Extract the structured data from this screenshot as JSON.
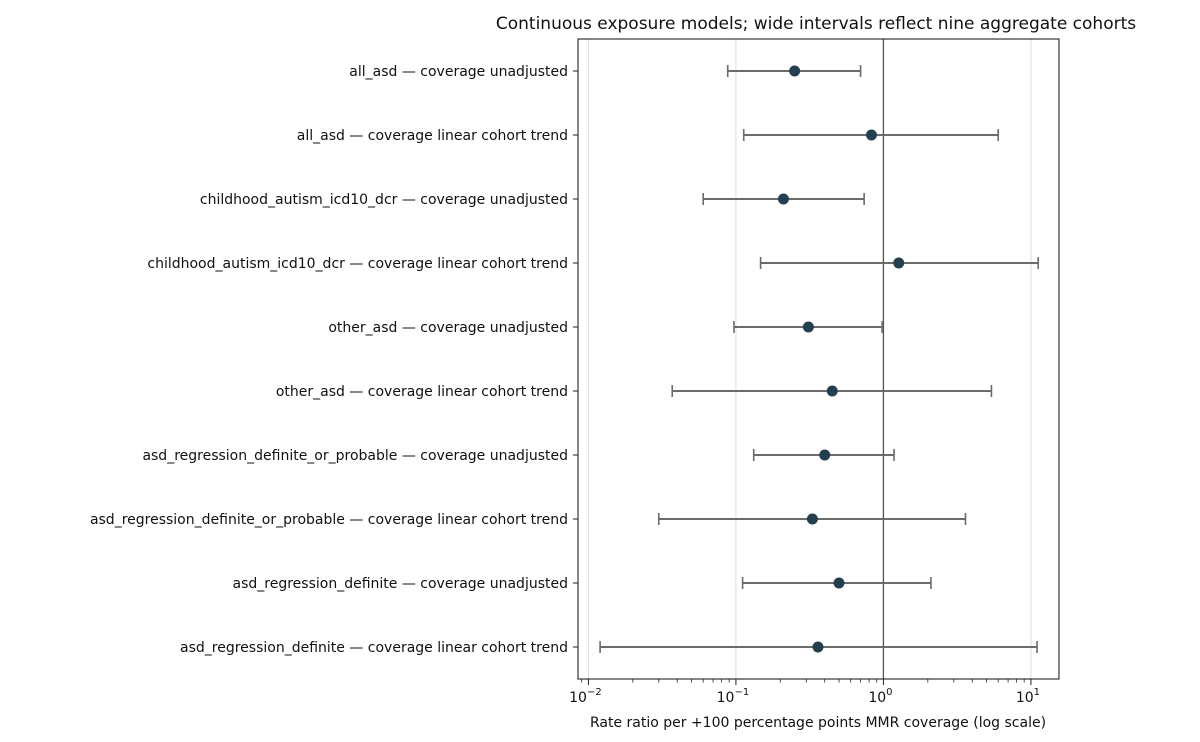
{
  "chart_data": {
    "type": "forest",
    "title": "Continuous exposure models; wide intervals reflect nine aggregate cohorts",
    "xlabel": "Rate ratio per +100 percentage points MMR coverage (log scale)",
    "x_scale": "log10",
    "xlim": [
      0.0085,
      15.5
    ],
    "x_ticks": [
      {
        "base": "10",
        "exp": "−2",
        "value": 0.01
      },
      {
        "base": "10",
        "exp": "−1",
        "value": 0.1
      },
      {
        "base": "10",
        "exp": "0",
        "value": 1
      },
      {
        "base": "10",
        "exp": "1",
        "value": 10
      }
    ],
    "reference_line": 1,
    "grid": "vertical at major ticks",
    "marker_color": "#243f4f",
    "errorbar_color": "#6b6b6b",
    "rows": [
      {
        "label": "all_asd — coverage unadjusted",
        "estimate": 0.25,
        "lower": 0.088,
        "upper": 0.7
      },
      {
        "label": "all_asd — coverage linear cohort trend",
        "estimate": 0.83,
        "lower": 0.113,
        "upper": 6.0
      },
      {
        "label": "childhood_autism_icd10_dcr — coverage unadjusted",
        "estimate": 0.21,
        "lower": 0.06,
        "upper": 0.74
      },
      {
        "label": "childhood_autism_icd10_dcr — coverage linear cohort trend",
        "estimate": 1.27,
        "lower": 0.147,
        "upper": 11.2
      },
      {
        "label": "other_asd — coverage unadjusted",
        "estimate": 0.31,
        "lower": 0.097,
        "upper": 0.98
      },
      {
        "label": "other_asd — coverage linear cohort trend",
        "estimate": 0.45,
        "lower": 0.037,
        "upper": 5.4
      },
      {
        "label": "asd_regression_definite_or_probable — coverage unadjusted",
        "estimate": 0.4,
        "lower": 0.132,
        "upper": 1.18
      },
      {
        "label": "asd_regression_definite_or_probable — coverage linear cohort trend",
        "estimate": 0.33,
        "lower": 0.03,
        "upper": 3.6
      },
      {
        "label": "asd_regression_definite — coverage unadjusted",
        "estimate": 0.5,
        "lower": 0.111,
        "upper": 2.1
      },
      {
        "label": "asd_regression_definite — coverage linear cohort trend",
        "estimate": 0.36,
        "lower": 0.012,
        "upper": 11.0
      }
    ]
  }
}
